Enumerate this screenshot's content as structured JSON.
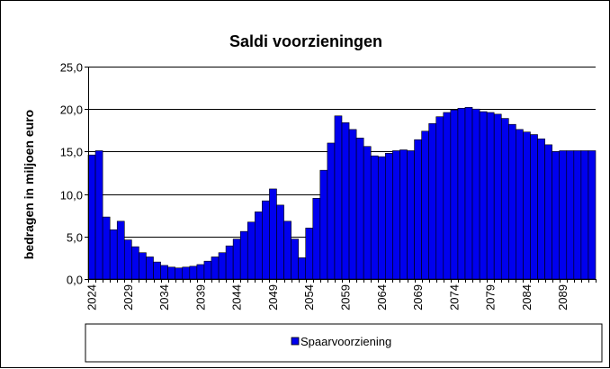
{
  "chart_data": {
    "type": "bar",
    "title": "Saldi voorzieningen",
    "xlabel": "",
    "ylabel": "bedragen in miljoen euro",
    "ylim": [
      0,
      25
    ],
    "yticks": [
      "0,0",
      "5,0",
      "10,0",
      "15,0",
      "20,0",
      "25,0"
    ],
    "ytick_values": [
      0,
      5,
      10,
      15,
      20,
      25
    ],
    "x_tick_labels": [
      "2024",
      "2029",
      "2034",
      "2039",
      "2044",
      "2049",
      "2054",
      "2059",
      "2064",
      "2069",
      "2074",
      "2079",
      "2084",
      "2089"
    ],
    "x_tick_years": [
      2024,
      2029,
      2034,
      2039,
      2044,
      2049,
      2054,
      2059,
      2064,
      2069,
      2074,
      2079,
      2084,
      2089
    ],
    "grid": "horizontal",
    "legend": "bottom",
    "bar_color": "#0000ee",
    "x": [
      2024,
      2025,
      2026,
      2027,
      2028,
      2029,
      2030,
      2031,
      2032,
      2033,
      2034,
      2035,
      2036,
      2037,
      2038,
      2039,
      2040,
      2041,
      2042,
      2043,
      2044,
      2045,
      2046,
      2047,
      2048,
      2049,
      2050,
      2051,
      2052,
      2053,
      2054,
      2055,
      2056,
      2057,
      2058,
      2059,
      2060,
      2061,
      2062,
      2063,
      2064,
      2065,
      2066,
      2067,
      2068,
      2069,
      2070,
      2071,
      2072,
      2073,
      2074,
      2075,
      2076,
      2077,
      2078,
      2079,
      2080,
      2081,
      2082,
      2083,
      2084,
      2085,
      2086,
      2087,
      2088,
      2089,
      2090,
      2091,
      2092,
      2093
    ],
    "series": [
      {
        "name": "Spaarvoorziening",
        "values": [
          14.6,
          15.1,
          7.3,
          5.8,
          6.8,
          4.6,
          3.8,
          3.1,
          2.6,
          2.0,
          1.6,
          1.4,
          1.3,
          1.4,
          1.5,
          1.7,
          2.1,
          2.6,
          3.1,
          3.9,
          4.7,
          5.6,
          6.7,
          7.9,
          9.2,
          10.6,
          8.7,
          6.8,
          4.7,
          2.5,
          6.0,
          9.5,
          12.8,
          16.0,
          19.2,
          18.4,
          17.6,
          16.6,
          15.6,
          14.5,
          14.4,
          14.8,
          15.1,
          15.2,
          15.1,
          16.4,
          17.4,
          18.3,
          19.1,
          19.6,
          19.9,
          20.1,
          20.2,
          20.0,
          19.7,
          19.6,
          19.4,
          18.9,
          18.2,
          17.6,
          17.3,
          17.0,
          16.5,
          15.8,
          15.0,
          15.1,
          15.1,
          15.1,
          15.1,
          15.1
        ]
      }
    ]
  }
}
